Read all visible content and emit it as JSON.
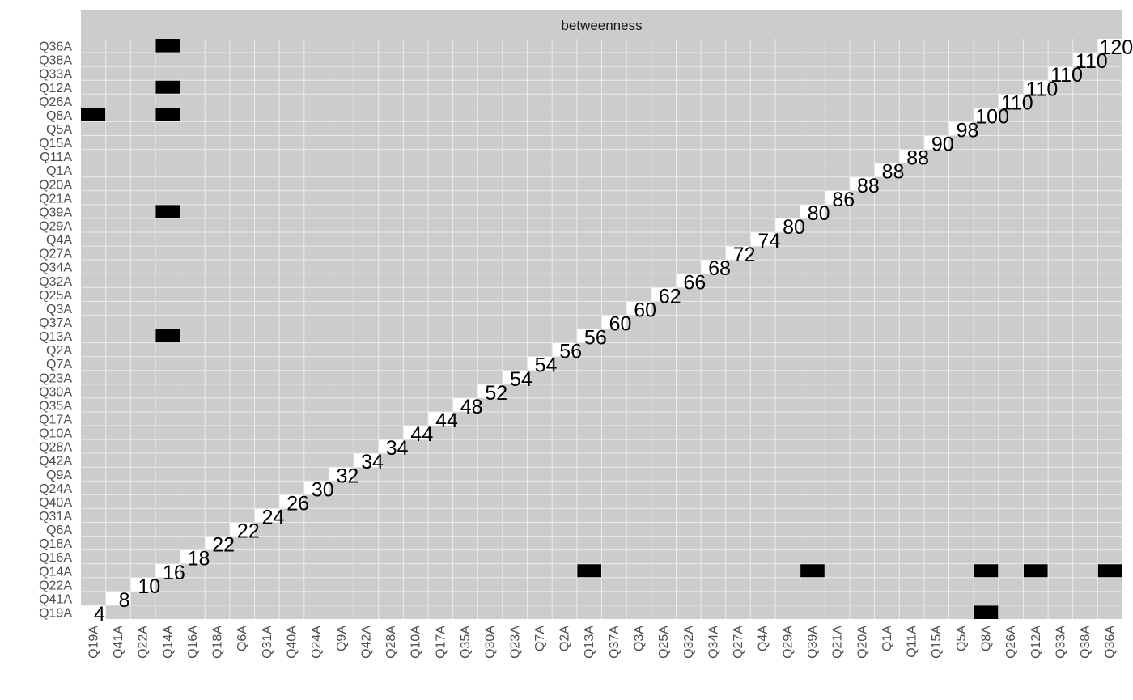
{
  "chart_data": {
    "type": "heatmap",
    "title": "",
    "xlabel": "",
    "ylabel": "",
    "facet_label": "betweenness",
    "x_categories": [
      "Q19A",
      "Q41A",
      "Q22A",
      "Q14A",
      "Q16A",
      "Q18A",
      "Q6A",
      "Q31A",
      "Q40A",
      "Q24A",
      "Q9A",
      "Q42A",
      "Q28A",
      "Q10A",
      "Q17A",
      "Q35A",
      "Q30A",
      "Q23A",
      "Q7A",
      "Q2A",
      "Q13A",
      "Q37A",
      "Q3A",
      "Q25A",
      "Q32A",
      "Q34A",
      "Q27A",
      "Q4A",
      "Q29A",
      "Q39A",
      "Q21A",
      "Q20A",
      "Q1A",
      "Q11A",
      "Q15A",
      "Q5A",
      "Q8A",
      "Q26A",
      "Q12A",
      "Q33A",
      "Q38A",
      "Q36A"
    ],
    "y_categories": [
      "Q36A",
      "Q38A",
      "Q33A",
      "Q12A",
      "Q26A",
      "Q8A",
      "Q5A",
      "Q15A",
      "Q11A",
      "Q1A",
      "Q20A",
      "Q21A",
      "Q39A",
      "Q29A",
      "Q4A",
      "Q27A",
      "Q34A",
      "Q32A",
      "Q25A",
      "Q3A",
      "Q37A",
      "Q13A",
      "Q2A",
      "Q7A",
      "Q23A",
      "Q30A",
      "Q35A",
      "Q17A",
      "Q10A",
      "Q28A",
      "Q42A",
      "Q9A",
      "Q24A",
      "Q40A",
      "Q31A",
      "Q6A",
      "Q18A",
      "Q16A",
      "Q14A",
      "Q22A",
      "Q41A",
      "Q19A"
    ],
    "diagonal_labels": [
      "4",
      "8",
      "10",
      "16",
      "18",
      "22",
      "22",
      "24",
      "26",
      "30",
      "32",
      "34",
      "34",
      "44",
      "44",
      "48",
      "52",
      "54",
      "54",
      "56",
      "56",
      "60",
      "60",
      "62",
      "66",
      "68",
      "72",
      "74",
      "80",
      "80",
      "86",
      "88",
      "88",
      "88",
      "90",
      "98",
      "100",
      "110",
      "110",
      "110",
      "110",
      "120"
    ],
    "black_cells": [
      {
        "x": "Q14A",
        "y": "Q36A"
      },
      {
        "x": "Q14A",
        "y": "Q12A"
      },
      {
        "x": "Q19A",
        "y": "Q8A"
      },
      {
        "x": "Q14A",
        "y": "Q8A"
      },
      {
        "x": "Q14A",
        "y": "Q39A"
      },
      {
        "x": "Q14A",
        "y": "Q13A"
      },
      {
        "x": "Q13A",
        "y": "Q14A"
      },
      {
        "x": "Q39A",
        "y": "Q14A"
      },
      {
        "x": "Q8A",
        "y": "Q14A"
      },
      {
        "x": "Q12A",
        "y": "Q14A"
      },
      {
        "x": "Q36A",
        "y": "Q14A"
      },
      {
        "x": "Q8A",
        "y": "Q19A"
      }
    ],
    "grid": true,
    "legend": "none",
    "colors": {
      "panel": "#cccccc",
      "strip": "#cccccc",
      "grid": "#ebebeb",
      "diagonal_cell": "#ffffff",
      "marked_cell": "#000000",
      "label": "#000000",
      "tick": "#4d4d4d"
    }
  }
}
